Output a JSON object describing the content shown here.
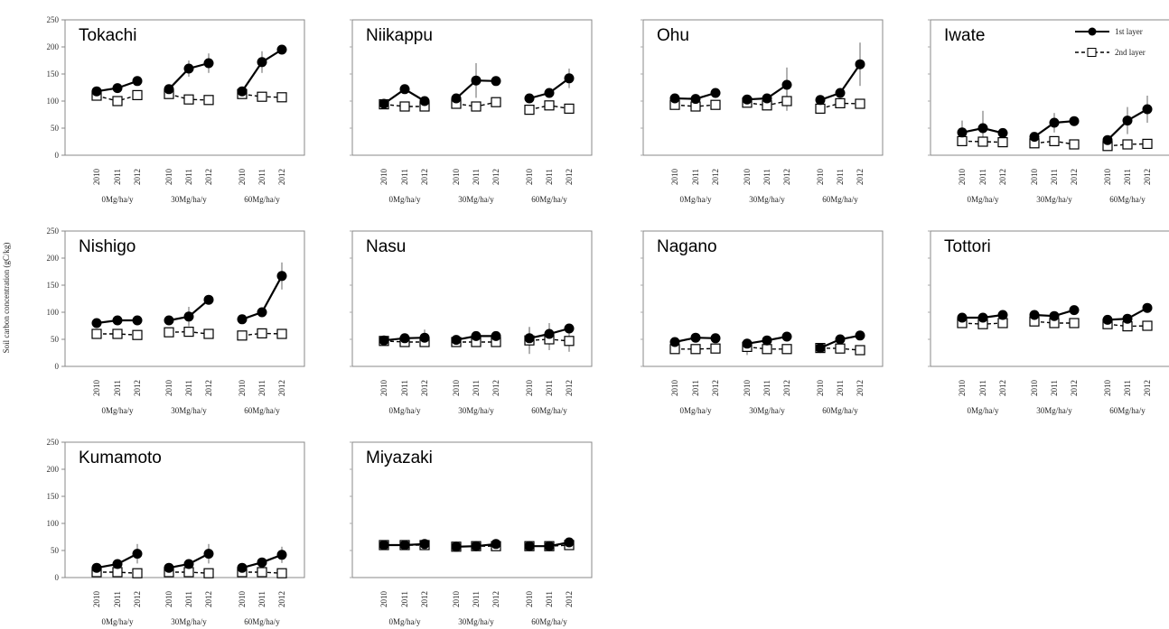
{
  "chart_data": {
    "type": "line",
    "ylabel": "Soil carbon concentration (gC/kg)",
    "ylim": [
      0,
      250
    ],
    "yticks": [
      "0",
      "50",
      "100",
      "150",
      "200",
      "250"
    ],
    "years": [
      "2010",
      "2011",
      "2012"
    ],
    "groups": [
      "0Mg/ha/y",
      "30Mg/ha/y",
      "60Mg/ha/y"
    ],
    "legend": {
      "first": "1st layer",
      "second": "2nd layer"
    },
    "panels": [
      {
        "title": "Tokachi",
        "first": [
          [
            118,
            124,
            137
          ],
          [
            122,
            160,
            170
          ],
          [
            118,
            172,
            195
          ]
        ],
        "second": [
          [
            110,
            100,
            111
          ],
          [
            113,
            103,
            102
          ],
          [
            113,
            108,
            107
          ]
        ],
        "err1": [
          [
            0,
            5,
            0
          ],
          [
            0,
            15,
            18
          ],
          [
            0,
            20,
            0
          ]
        ],
        "err2": [
          [
            0,
            0,
            0
          ],
          [
            0,
            0,
            0
          ],
          [
            0,
            0,
            0
          ]
        ]
      },
      {
        "title": "Niikappu",
        "first": [
          [
            95,
            122,
            100
          ],
          [
            105,
            138,
            137
          ],
          [
            105,
            115,
            142
          ]
        ],
        "second": [
          [
            94,
            90,
            90
          ],
          [
            95,
            90,
            98
          ],
          [
            84,
            92,
            86
          ]
        ],
        "err1": [
          [
            0,
            0,
            0
          ],
          [
            0,
            32,
            0
          ],
          [
            0,
            0,
            18
          ]
        ],
        "err2": [
          [
            0,
            0,
            0
          ],
          [
            0,
            0,
            0
          ],
          [
            0,
            0,
            0
          ]
        ]
      },
      {
        "title": "Ohu",
        "first": [
          [
            105,
            104,
            115
          ],
          [
            103,
            105,
            130
          ],
          [
            102,
            115,
            168
          ]
        ],
        "second": [
          [
            93,
            90,
            93
          ],
          [
            97,
            92,
            100
          ],
          [
            86,
            96,
            95
          ]
        ],
        "err1": [
          [
            0,
            0,
            0
          ],
          [
            0,
            0,
            32
          ],
          [
            0,
            0,
            40
          ]
        ],
        "err2": [
          [
            0,
            0,
            0
          ],
          [
            0,
            0,
            18
          ],
          [
            0,
            0,
            0
          ]
        ]
      },
      {
        "title": "Iwate",
        "first": [
          [
            42,
            50,
            41
          ],
          [
            34,
            60,
            63
          ],
          [
            28,
            64,
            85
          ]
        ],
        "second": [
          [
            26,
            25,
            24
          ],
          [
            22,
            26,
            20
          ],
          [
            17,
            20,
            21
          ]
        ],
        "err1": [
          [
            22,
            32,
            0
          ],
          [
            0,
            18,
            0
          ],
          [
            0,
            25,
            25
          ]
        ],
        "err2": [
          [
            0,
            0,
            0
          ],
          [
            0,
            0,
            0
          ],
          [
            0,
            0,
            0
          ]
        ]
      },
      {
        "title": "Nishigo",
        "first": [
          [
            80,
            85,
            85
          ],
          [
            85,
            92,
            123
          ],
          [
            87,
            100,
            167
          ]
        ],
        "second": [
          [
            60,
            60,
            58
          ],
          [
            63,
            64,
            60
          ],
          [
            57,
            61,
            60
          ]
        ],
        "err1": [
          [
            0,
            0,
            0
          ],
          [
            0,
            18,
            0
          ],
          [
            0,
            0,
            25
          ]
        ],
        "err2": [
          [
            0,
            0,
            0
          ],
          [
            0,
            0,
            0
          ],
          [
            0,
            0,
            0
          ]
        ]
      },
      {
        "title": "Nasu",
        "first": [
          [
            48,
            52,
            53
          ],
          [
            49,
            56,
            56
          ],
          [
            52,
            60,
            70
          ]
        ],
        "second": [
          [
            47,
            45,
            45
          ],
          [
            45,
            45,
            45
          ],
          [
            48,
            50,
            47
          ]
        ],
        "err1": [
          [
            0,
            0,
            15
          ],
          [
            0,
            0,
            0
          ],
          [
            20,
            20,
            0
          ]
        ],
        "err2": [
          [
            0,
            0,
            0
          ],
          [
            0,
            0,
            0
          ],
          [
            25,
            20,
            20
          ]
        ]
      },
      {
        "title": "Nagano",
        "first": [
          [
            45,
            53,
            52
          ],
          [
            42,
            48,
            55
          ],
          [
            34,
            50,
            57
          ]
        ],
        "second": [
          [
            32,
            32,
            33
          ],
          [
            36,
            32,
            32
          ],
          [
            34,
            33,
            30
          ]
        ],
        "err1": [
          [
            0,
            0,
            0
          ],
          [
            0,
            0,
            0
          ],
          [
            0,
            0,
            0
          ]
        ],
        "err2": [
          [
            0,
            0,
            0
          ],
          [
            15,
            0,
            0
          ],
          [
            0,
            0,
            0
          ]
        ]
      },
      {
        "title": "Tottori",
        "first": [
          [
            90,
            90,
            95
          ],
          [
            95,
            93,
            104
          ],
          [
            86,
            88,
            108
          ]
        ],
        "second": [
          [
            80,
            78,
            80
          ],
          [
            83,
            80,
            80
          ],
          [
            78,
            74,
            75
          ]
        ],
        "err1": [
          [
            0,
            0,
            0
          ],
          [
            0,
            0,
            0
          ],
          [
            0,
            0,
            0
          ]
        ],
        "err2": [
          [
            0,
            0,
            0
          ],
          [
            0,
            0,
            0
          ],
          [
            0,
            0,
            0
          ]
        ]
      },
      {
        "title": "Kumamoto",
        "first": [
          [
            18,
            25,
            44
          ],
          [
            18,
            25,
            44
          ],
          [
            18,
            28,
            42
          ]
        ],
        "second": [
          [
            10,
            10,
            8
          ],
          [
            10,
            10,
            8
          ],
          [
            10,
            10,
            8
          ]
        ],
        "err1": [
          [
            0,
            0,
            18
          ],
          [
            0,
            0,
            18
          ],
          [
            0,
            0,
            15
          ]
        ],
        "err2": [
          [
            0,
            0,
            0
          ],
          [
            0,
            0,
            0
          ],
          [
            0,
            0,
            0
          ]
        ]
      },
      {
        "title": "Miyazaki",
        "first": [
          [
            60,
            60,
            62
          ],
          [
            57,
            58,
            62
          ],
          [
            58,
            58,
            65
          ]
        ],
        "second": [
          [
            60,
            60,
            60
          ],
          [
            57,
            58,
            58
          ],
          [
            58,
            58,
            60
          ]
        ],
        "err1": [
          [
            0,
            0,
            0
          ],
          [
            0,
            0,
            0
          ],
          [
            0,
            0,
            0
          ]
        ],
        "err2": [
          [
            0,
            0,
            0
          ],
          [
            0,
            0,
            0
          ],
          [
            0,
            0,
            0
          ]
        ]
      }
    ]
  }
}
